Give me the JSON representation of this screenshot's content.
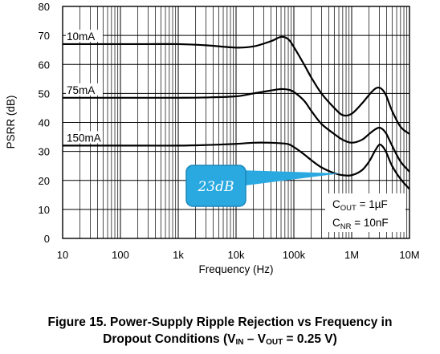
{
  "chart_data": {
    "type": "line",
    "xlabel": "Frequency (Hz)",
    "ylabel": "PSRR (dB)",
    "xscale": "log",
    "xlim": [
      10,
      10000000
    ],
    "ylim": [
      0,
      80
    ],
    "x_ticks": [
      "10",
      "100",
      "1k",
      "10k",
      "100k",
      "1M",
      "10M"
    ],
    "y_ticks": [
      "0",
      "10",
      "20",
      "30",
      "40",
      "50",
      "60",
      "70",
      "80"
    ],
    "grid": true,
    "series": [
      {
        "name": "10mA",
        "x": [
          10,
          30,
          100,
          300,
          1000,
          3000,
          10000,
          20000,
          40000,
          60000,
          80000,
          100000,
          150000,
          200000,
          300000,
          500000,
          700000,
          1000000,
          1500000,
          2000000,
          2500000,
          3000000,
          3500000,
          4000000,
          5000000,
          7000000,
          10000000
        ],
        "y": [
          67,
          67,
          67,
          67,
          67,
          66.6,
          65.8,
          66.2,
          68,
          69.5,
          68.7,
          66,
          60,
          55.5,
          50,
          45,
          42.5,
          43,
          46.5,
          49.5,
          51.5,
          52,
          51,
          49,
          44,
          38.5,
          36
        ]
      },
      {
        "name": "75mA",
        "x": [
          10,
          30,
          100,
          300,
          1000,
          3000,
          10000,
          20000,
          40000,
          60000,
          80000,
          100000,
          150000,
          200000,
          300000,
          500000,
          700000,
          1000000,
          1500000,
          2000000,
          2500000,
          3000000,
          3500000,
          4000000,
          5000000,
          7000000,
          10000000
        ],
        "y": [
          48.5,
          48.5,
          48.5,
          48.5,
          48.5,
          48.6,
          49,
          50,
          51,
          51.5,
          51.3,
          50.5,
          47.5,
          44,
          39.5,
          36,
          34,
          33,
          34,
          36,
          37.5,
          38.2,
          37.5,
          36,
          32,
          26.5,
          23
        ]
      },
      {
        "name": "150mA",
        "x": [
          10,
          30,
          100,
          300,
          1000,
          3000,
          10000,
          20000,
          40000,
          60000,
          80000,
          100000,
          150000,
          200000,
          300000,
          500000,
          700000,
          1000000,
          1500000,
          2000000,
          2500000,
          3000000,
          3500000,
          4000000,
          5000000,
          7000000,
          10000000
        ],
        "y": [
          32,
          32,
          32,
          32,
          32,
          32.2,
          32.6,
          33,
          33,
          32.8,
          32.5,
          31.5,
          29,
          27,
          24.5,
          22.5,
          21.8,
          21.8,
          23.5,
          26.5,
          30,
          32.3,
          31.5,
          29.5,
          25,
          20.5,
          17
        ]
      }
    ],
    "annotations": {
      "conditions_line1": "C",
      "conditions_line1_sub": "OUT",
      "conditions_line1_val": " = 1µF",
      "conditions_line2": "C",
      "conditions_line2_sub": "NR",
      "conditions_line2_val": " = 10nF",
      "callout": "23dB"
    },
    "colors": {
      "line": "#000000",
      "grid": "#000000",
      "callout_fill": "#2aa9e0",
      "callout_stroke": "#1b86b8"
    }
  },
  "caption": {
    "line1": "Figure 15. Power-Supply Ripple Rejection vs Frequency in",
    "line2_prefix": "Dropout Conditions (V",
    "line2_in": "IN",
    "line2_mid": " – V",
    "line2_out": "OUT",
    "line2_suffix": " = 0.25 V)"
  }
}
